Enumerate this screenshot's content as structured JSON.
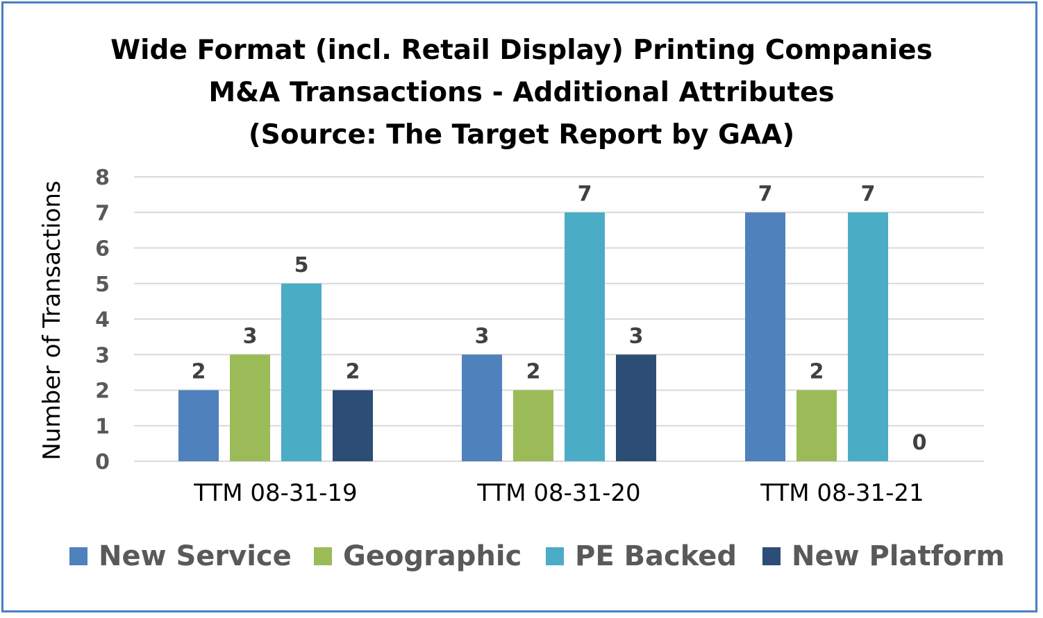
{
  "chart_data": {
    "type": "bar",
    "title_lines": [
      "Wide Format (incl. Retail Display) Printing Companies",
      "M&A Transactions - Additional Attributes",
      "(Source: The Target Report by GAA)"
    ],
    "xlabel": "",
    "ylabel": "Number of Transactions",
    "categories": [
      "TTM 08-31-19",
      "TTM 08-31-20",
      "TTM 08-31-21"
    ],
    "series": [
      {
        "name": "New Service",
        "color": "#4f81bd",
        "values": [
          2,
          3,
          7
        ]
      },
      {
        "name": "Geographic",
        "color": "#9bbb59",
        "values": [
          3,
          2,
          2
        ]
      },
      {
        "name": "PE Backed",
        "color": "#4bacc6",
        "values": [
          5,
          7,
          7
        ]
      },
      {
        "name": "New Platform",
        "color": "#2c4d75",
        "values": [
          2,
          3,
          0
        ]
      }
    ],
    "ylim": [
      0,
      8
    ],
    "yticks": [
      0,
      1,
      2,
      3,
      4,
      5,
      6,
      7,
      8
    ],
    "grid": true,
    "legend_position": "bottom",
    "data_labels": true
  }
}
